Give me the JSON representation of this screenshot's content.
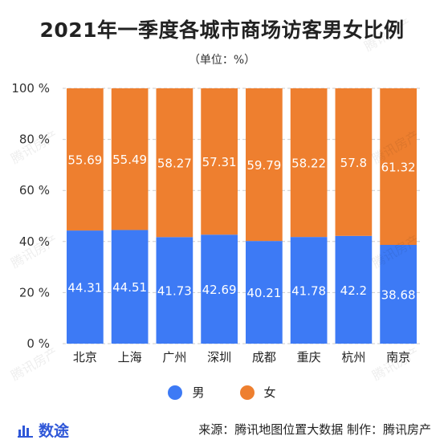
{
  "title": "2021年一季度各城市商场访客男女比例",
  "unit_note": "（单位：%）",
  "colors": {
    "male": "#3d7af5",
    "female": "#ee7f2f",
    "grid": "#cccccc",
    "text": "#333333"
  },
  "chart_data": {
    "type": "bar",
    "stacked": true,
    "title": "2021年一季度各城市商场访客男女比例",
    "categories": [
      "北京",
      "上海",
      "广州",
      "深圳",
      "成都",
      "重庆",
      "杭州",
      "南京"
    ],
    "series": [
      {
        "name": "男",
        "color": "#3d7af5",
        "values": [
          44.31,
          44.51,
          41.73,
          42.69,
          40.21,
          41.78,
          42.2,
          38.68
        ]
      },
      {
        "name": "女",
        "color": "#ee7f2f",
        "values": [
          55.69,
          55.49,
          58.27,
          57.31,
          59.79,
          58.22,
          57.8,
          61.32
        ]
      }
    ],
    "ylim": [
      0,
      100
    ],
    "yticks": [
      0,
      20,
      40,
      60,
      80,
      100
    ],
    "ytick_labels": [
      "0 %",
      "20 %",
      "40 %",
      "60 %",
      "80 %",
      "100 %"
    ],
    "grid": true,
    "legend": "bottom"
  },
  "legend": [
    {
      "label": "男",
      "color": "#3d7af5"
    },
    {
      "label": "女",
      "color": "#ee7f2f"
    }
  ],
  "footer": {
    "brand": "数途",
    "source": "来源：腾讯地图位置大数据  制作：腾讯房产"
  },
  "watermark": "腾讯房产"
}
